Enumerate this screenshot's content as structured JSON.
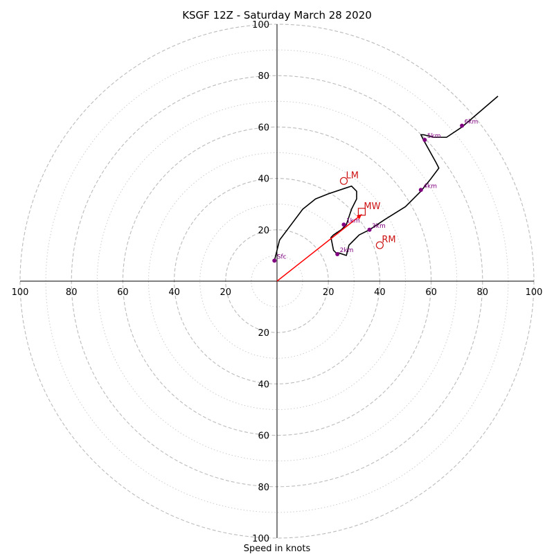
{
  "chart_data": {
    "type": "hodograph",
    "title": "KSGF 12Z - Saturday March 28 2020",
    "xlabel": "Speed in knots",
    "ylabel": "",
    "units": "knots",
    "range": 100,
    "ring_major": [
      20,
      40,
      60,
      80,
      100
    ],
    "ring_minor": [
      10,
      30,
      50,
      70,
      90
    ],
    "tick_labels": {
      "x_left": [
        "100",
        "80",
        "60",
        "40",
        "20"
      ],
      "x_right": [
        "20",
        "40",
        "60",
        "80",
        "100"
      ],
      "y_up": [
        "20",
        "40",
        "60",
        "80",
        "100"
      ],
      "y_down": [
        "20",
        "40",
        "60",
        "80",
        "100"
      ]
    },
    "hodograph_trace": {
      "u": [
        -1,
        0,
        1,
        4,
        10,
        15,
        20,
        26,
        29,
        31,
        31,
        29,
        27,
        25,
        22,
        21,
        22,
        23,
        24,
        27,
        28,
        32,
        36,
        42,
        50,
        56,
        60,
        63,
        62,
        57,
        56,
        57,
        61,
        66,
        72,
        86
      ],
      "v": [
        8,
        12,
        16,
        20,
        28,
        32,
        34,
        36,
        37,
        35,
        32,
        28,
        22,
        20,
        18,
        17,
        12,
        11,
        11,
        10,
        14,
        18,
        20,
        24,
        29,
        35,
        40,
        44,
        46,
        55,
        57,
        57,
        56,
        56,
        60,
        72
      ]
    },
    "height_markers": [
      {
        "label": "Sfc",
        "u": -1,
        "v": 8
      },
      {
        "label": "1km",
        "u": 26,
        "v": 22
      },
      {
        "label": "2km",
        "u": 23.5,
        "v": 10.5
      },
      {
        "label": "3km",
        "u": 36,
        "v": 20
      },
      {
        "label": "4km",
        "u": 56,
        "v": 35.5
      },
      {
        "label": "5km",
        "u": 57.5,
        "v": 55
      },
      {
        "label": "6km",
        "u": 72,
        "v": 60.5
      }
    ],
    "storm_motion": [
      {
        "label": "LM",
        "u": 26,
        "v": 39,
        "symbol": "circle"
      },
      {
        "label": "MW",
        "u": 33,
        "v": 27,
        "symbol": "square"
      },
      {
        "label": "RM",
        "u": 40,
        "v": 14,
        "symbol": "circle"
      }
    ],
    "mean_wind_vector": {
      "u": 33,
      "v": 26
    },
    "grid": true,
    "colors": {
      "trace": "#000000",
      "height_marker": "#800080",
      "storm_motion": "#cc1111",
      "vector": "#ff0000",
      "grid": "#bbbbbb"
    }
  }
}
